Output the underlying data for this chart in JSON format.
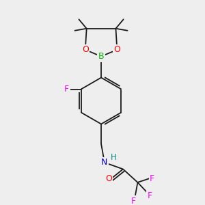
{
  "bg_color": "#eeeeee",
  "bond_color": "#1a1a1a",
  "atom_colors": {
    "B": "#00bb00",
    "O": "#ff0000",
    "F": "#ff00ff",
    "N": "#0000cc",
    "H": "#008888",
    "C": "#1a1a1a"
  },
  "lw": 1.3
}
